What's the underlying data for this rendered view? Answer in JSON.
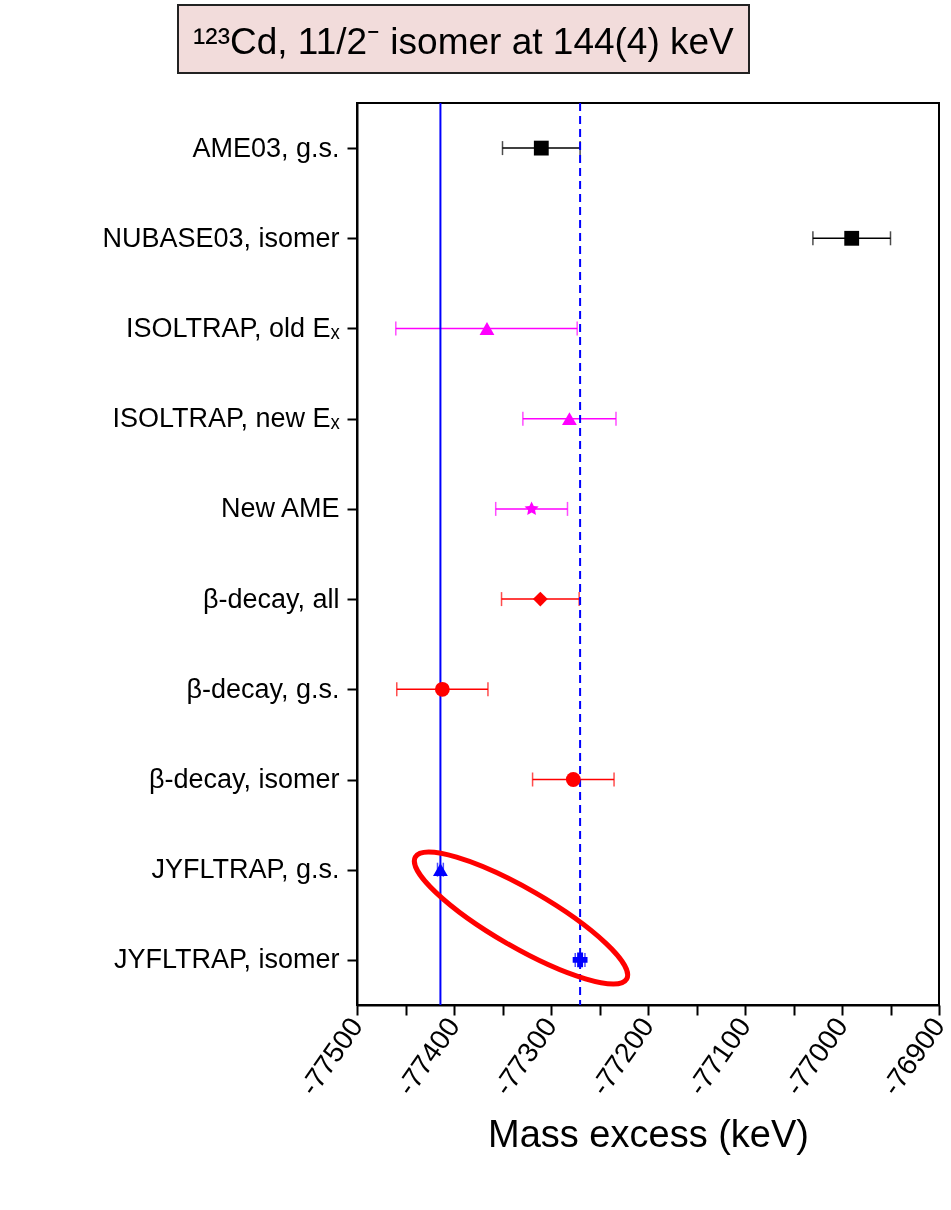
{
  "chart_data": {
    "type": "scatter",
    "title": "¹²³Cd, 11/2⁻ isomer at 144(4) keV",
    "xlabel": "Mass excess (keV)",
    "orientation": "horizontal",
    "categories": [
      "AME03, g.s.",
      "NUBASE03, isomer",
      "ISOLTRAP, old Eₓ",
      "ISOLTRAP, new Eₓ",
      "New AME",
      "β-decay, all",
      "β-decay, g.s.",
      "β-decay, isomer",
      "JYFLTRAP, g.s.",
      "JYFLTRAP, isomer"
    ],
    "xlim": [
      -77500,
      -76900
    ],
    "xticks": [
      -77500,
      {
        "value": -77450,
        "label": null
      },
      -77400,
      {
        "value": -77350,
        "label": null
      },
      -77300,
      {
        "value": -77250,
        "label": null
      },
      -77200,
      {
        "value": -77150,
        "label": null
      },
      -77100,
      {
        "value": -77050,
        "label": null
      },
      -77000,
      {
        "value": -76950,
        "label": null
      },
      -76900
    ],
    "series": [
      {
        "color": "#000000",
        "marker": "square",
        "values": [
          -77310,
          null,
          null,
          null,
          null,
          null,
          null,
          null,
          null,
          null
        ],
        "errors": [
          40,
          null,
          null,
          null,
          null,
          null,
          null,
          null,
          null,
          null
        ]
      },
      {
        "color": "#000000",
        "marker": "square",
        "values": [
          null,
          -76990,
          null,
          null,
          null,
          null,
          null,
          null,
          null,
          null
        ],
        "errors": [
          null,
          40,
          null,
          null,
          null,
          null,
          null,
          null,
          null,
          null
        ]
      },
      {
        "color": "#ff00ff",
        "marker": "triangle",
        "values": [
          null,
          null,
          -77366,
          null,
          null,
          null,
          null,
          null,
          null,
          null
        ],
        "errors": [
          null,
          null,
          [
            -77460,
            -77273
          ],
          null,
          null,
          null,
          null,
          null,
          null,
          null
        ]
      },
      {
        "color": "#ff00ff",
        "marker": "triangle",
        "values": [
          null,
          null,
          null,
          -77281,
          null,
          null,
          null,
          null,
          null,
          null
        ],
        "errors": [
          null,
          null,
          null,
          48,
          null,
          null,
          null,
          null,
          null,
          null
        ]
      },
      {
        "color": "#ff00ff",
        "marker": "star",
        "values": [
          null,
          null,
          null,
          null,
          -77320,
          null,
          null,
          null,
          null,
          null
        ],
        "errors": [
          null,
          null,
          null,
          null,
          37,
          null,
          null,
          null,
          null,
          null
        ]
      },
      {
        "color": "#ff0000",
        "marker": "diamond",
        "values": [
          null,
          null,
          null,
          null,
          null,
          -77311,
          null,
          null,
          null,
          null
        ],
        "errors": [
          null,
          null,
          null,
          null,
          null,
          40,
          null,
          null,
          null,
          null
        ]
      },
      {
        "color": "#ff0000",
        "marker": "circle",
        "values": [
          null,
          null,
          null,
          null,
          null,
          null,
          -77412,
          null,
          null,
          null
        ],
        "errors": [
          null,
          null,
          null,
          null,
          null,
          null,
          47,
          null,
          null,
          null
        ]
      },
      {
        "color": "#ff0000",
        "marker": "circle",
        "values": [
          null,
          null,
          null,
          null,
          null,
          null,
          null,
          -77277,
          null,
          null
        ],
        "errors": [
          null,
          null,
          null,
          null,
          null,
          null,
          null,
          42,
          null,
          null
        ]
      },
      {
        "color": "#0000ff",
        "marker": "triangle",
        "values": [
          null,
          null,
          null,
          null,
          null,
          null,
          null,
          null,
          -77414,
          null
        ],
        "errors": [
          null,
          null,
          null,
          null,
          null,
          null,
          null,
          null,
          3,
          null
        ]
      },
      {
        "color": "#0000ff",
        "marker": "cross",
        "values": [
          null,
          null,
          null,
          null,
          null,
          null,
          null,
          null,
          null,
          -77270
        ],
        "errors": [
          null,
          null,
          null,
          null,
          null,
          null,
          null,
          null,
          null,
          5
        ]
      }
    ],
    "ref_lines": [
      {
        "axis": "x",
        "value": -77414,
        "color": "#0000ff",
        "line_style": "solid"
      },
      {
        "axis": "x",
        "value": -77270,
        "color": "#0000ff",
        "line_style": "dashed"
      }
    ]
  }
}
